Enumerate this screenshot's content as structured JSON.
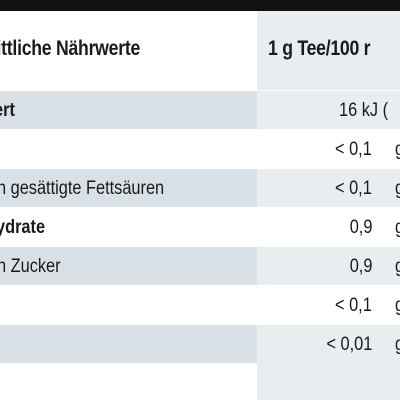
{
  "table": {
    "header": {
      "left": "nittliche Nährwerte",
      "right": "1 g Tee/100 r"
    },
    "rows": [
      {
        "label": "ert",
        "label_bold": true,
        "value": "16 kJ (",
        "unit": ""
      },
      {
        "label": "",
        "label_bold": false,
        "value": "< 0,1",
        "unit": "g"
      },
      {
        "label": "n gesättigte Fettsäuren",
        "label_bold": false,
        "value": "< 0,1",
        "unit": "g"
      },
      {
        "label": "ydrate",
        "label_bold": true,
        "value": "0,9",
        "unit": "g"
      },
      {
        "label": "n Zucker",
        "label_bold": false,
        "value": "0,9",
        "unit": "g"
      },
      {
        "label": "",
        "label_bold": false,
        "value": "< 0,1",
        "unit": "g"
      },
      {
        "label": "",
        "label_bold": false,
        "value": "< 0,01",
        "unit": "g"
      }
    ]
  },
  "colors": {
    "border": "#111111",
    "shade_left": "#d9e1e6",
    "shade_right": "#e8edf0",
    "text": "#1a1a1a"
  }
}
